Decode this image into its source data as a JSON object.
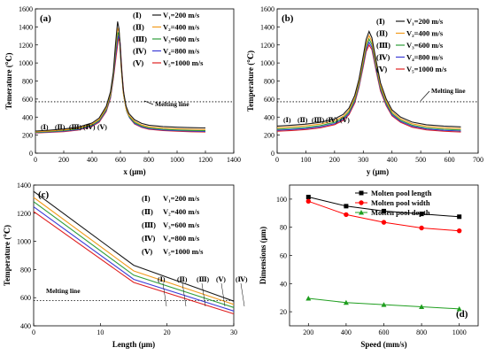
{
  "chart_data": [
    {
      "type": "line",
      "panel_label": "(a)",
      "xlabel": "x (μm)",
      "ylabel": "Temerature (℃)",
      "xlim": [
        0,
        1400
      ],
      "ylim": [
        0,
        1600
      ],
      "xticks": [
        0,
        200,
        400,
        600,
        800,
        1000,
        1200,
        1400
      ],
      "yticks": [
        0,
        200,
        400,
        600,
        800,
        1000,
        1200,
        1400,
        1600
      ],
      "annotation": "Melting line",
      "melting_line_value": 570,
      "curve_tags": [
        "(Ⅰ)",
        "(Ⅱ)",
        "(Ⅲ)",
        "(Ⅳ)",
        "(Ⅴ)"
      ],
      "series": [
        {
          "name": "V₁=200 m/s",
          "marker": "(Ⅰ)",
          "color": "#1a1a1a",
          "x": [
            0,
            100,
            200,
            300,
            400,
            450,
            500,
            530,
            550,
            565,
            580,
            590,
            605,
            620,
            640,
            660,
            700,
            750,
            800,
            900,
            1000,
            1100,
            1200
          ],
          "values": [
            245,
            255,
            268,
            288,
            335,
            390,
            520,
            680,
            900,
            1200,
            1460,
            1380,
            1000,
            700,
            520,
            440,
            370,
            330,
            310,
            295,
            288,
            283,
            280
          ]
        },
        {
          "name": "V₂=400 m/s",
          "marker": "(Ⅱ)",
          "color": "#f29a1c",
          "x": [
            0,
            100,
            200,
            300,
            400,
            450,
            500,
            530,
            550,
            565,
            580,
            592,
            605,
            620,
            640,
            660,
            700,
            750,
            800,
            900,
            1000,
            1100,
            1200
          ],
          "values": [
            238,
            246,
            258,
            276,
            322,
            375,
            500,
            660,
            880,
            1160,
            1390,
            1330,
            960,
            670,
            495,
            420,
            352,
            312,
            292,
            278,
            270,
            265,
            262
          ]
        },
        {
          "name": "V₃=600 m/s",
          "marker": "(Ⅲ)",
          "color": "#2e9e3a",
          "x": [
            0,
            100,
            200,
            300,
            400,
            450,
            500,
            530,
            550,
            565,
            582,
            594,
            607,
            622,
            642,
            662,
            700,
            750,
            800,
            900,
            1000,
            1100,
            1200
          ],
          "values": [
            232,
            240,
            250,
            268,
            312,
            362,
            485,
            640,
            860,
            1120,
            1340,
            1290,
            930,
            650,
            480,
            405,
            340,
            300,
            280,
            265,
            257,
            252,
            249
          ]
        },
        {
          "name": "V₄=800 m/s",
          "marker": "(Ⅳ)",
          "color": "#3b3bd6",
          "x": [
            0,
            100,
            200,
            300,
            400,
            450,
            500,
            530,
            550,
            567,
            584,
            596,
            609,
            624,
            644,
            664,
            700,
            750,
            800,
            900,
            1000,
            1100,
            1200
          ],
          "values": [
            228,
            235,
            244,
            261,
            303,
            352,
            472,
            625,
            840,
            1090,
            1300,
            1255,
            905,
            632,
            468,
            395,
            330,
            292,
            272,
            257,
            249,
            244,
            241
          ]
        },
        {
          "name": "V₅=1000 m/s",
          "marker": "(Ⅴ)",
          "color": "#e02020",
          "x": [
            0,
            100,
            200,
            300,
            400,
            450,
            500,
            530,
            550,
            569,
            586,
            598,
            611,
            626,
            646,
            666,
            700,
            750,
            800,
            900,
            1000,
            1100,
            1200
          ],
          "values": [
            224,
            231,
            239,
            255,
            296,
            344,
            462,
            612,
            825,
            1065,
            1270,
            1225,
            885,
            618,
            458,
            388,
            323,
            286,
            266,
            251,
            243,
            238,
            235
          ]
        }
      ]
    },
    {
      "type": "line",
      "panel_label": "(b)",
      "xlabel": "y (μm)",
      "ylabel": "Temperature (℃)",
      "xlim": [
        0,
        700
      ],
      "ylim": [
        0,
        1600
      ],
      "xticks": [
        0,
        100,
        200,
        300,
        400,
        500,
        600,
        700
      ],
      "yticks": [
        0,
        200,
        400,
        600,
        800,
        1000,
        1200,
        1400,
        1600
      ],
      "annotation": "Melting line",
      "melting_line_value": 570,
      "curve_tags": [
        "(Ⅰ)",
        "(Ⅱ)",
        "(Ⅲ)",
        "(Ⅳ)",
        "(Ⅴ)"
      ],
      "series": [
        {
          "name": "V₁=200 m/s",
          "marker": "(Ⅰ)",
          "color": "#1a1a1a",
          "x": [
            0,
            50,
            100,
            150,
            200,
            230,
            250,
            270,
            285,
            300,
            310,
            320,
            330,
            345,
            360,
            380,
            400,
            430,
            470,
            520,
            580,
            640
          ],
          "values": [
            300,
            310,
            322,
            342,
            380,
            430,
            500,
            640,
            820,
            1080,
            1260,
            1350,
            1280,
            1020,
            780,
            600,
            480,
            400,
            345,
            315,
            300,
            292
          ]
        },
        {
          "name": "V₂=400 m/s",
          "marker": "(Ⅱ)",
          "color": "#f29a1c",
          "x": [
            0,
            50,
            100,
            150,
            200,
            230,
            250,
            270,
            285,
            300,
            310,
            320,
            330,
            345,
            360,
            380,
            400,
            430,
            470,
            520,
            580,
            640
          ],
          "values": [
            282,
            292,
            303,
            322,
            360,
            408,
            475,
            612,
            790,
            1040,
            1215,
            1305,
            1240,
            985,
            750,
            575,
            458,
            380,
            326,
            296,
            281,
            273
          ]
        },
        {
          "name": "V₃=600 m/s",
          "marker": "(Ⅲ)",
          "color": "#2e9e3a",
          "x": [
            0,
            50,
            100,
            150,
            200,
            230,
            250,
            270,
            285,
            300,
            310,
            320,
            330,
            345,
            360,
            380,
            400,
            430,
            470,
            520,
            580,
            640
          ],
          "values": [
            266,
            275,
            286,
            305,
            342,
            390,
            455,
            590,
            765,
            1010,
            1180,
            1265,
            1205,
            955,
            728,
            556,
            440,
            364,
            310,
            280,
            265,
            257
          ]
        },
        {
          "name": "V₄=800 m/s",
          "marker": "(Ⅳ)",
          "color": "#3b3bd6",
          "x": [
            0,
            50,
            100,
            150,
            200,
            230,
            250,
            270,
            285,
            300,
            310,
            320,
            330,
            345,
            360,
            380,
            400,
            430,
            470,
            520,
            580,
            640
          ],
          "values": [
            254,
            262,
            273,
            292,
            328,
            375,
            440,
            572,
            745,
            985,
            1150,
            1230,
            1175,
            930,
            708,
            540,
            426,
            352,
            298,
            268,
            253,
            245
          ]
        },
        {
          "name": "V₅=1000 m/s",
          "marker": "(Ⅴ)",
          "color": "#e02020",
          "x": [
            0,
            50,
            100,
            150,
            200,
            230,
            250,
            270,
            285,
            300,
            310,
            320,
            330,
            345,
            360,
            380,
            400,
            430,
            470,
            520,
            580,
            640
          ],
          "values": [
            243,
            251,
            262,
            280,
            316,
            362,
            426,
            556,
            728,
            962,
            1125,
            1200,
            1148,
            908,
            690,
            526,
            414,
            342,
            288,
            258,
            243,
            235
          ]
        }
      ]
    },
    {
      "type": "line",
      "panel_label": "(c)",
      "xlabel": "Length (μm)",
      "ylabel": "Temperature (℃)",
      "xlim": [
        0,
        30
      ],
      "ylim": [
        400,
        1400
      ],
      "xticks": [
        0,
        10,
        20,
        30
      ],
      "yticks": [
        400,
        600,
        800,
        1000,
        1200,
        1400
      ],
      "annotation": "Melting line",
      "melting_line_value": 580,
      "curve_tags": [
        "(Ⅰ)",
        "(Ⅱ)",
        "(Ⅲ)",
        "(Ⅴ)",
        "(Ⅳ)"
      ],
      "series": [
        {
          "name": "V₁=200 m/s",
          "marker": "(Ⅰ)",
          "color": "#1a1a1a",
          "x": [
            0,
            15,
            30
          ],
          "values": [
            1355,
            830,
            575
          ]
        },
        {
          "name": "V₂=400 m/s",
          "marker": "(Ⅱ)",
          "color": "#f29a1c",
          "x": [
            0,
            15,
            30
          ],
          "values": [
            1312,
            790,
            552
          ]
        },
        {
          "name": "V₃=600 m/s",
          "marker": "(Ⅲ)",
          "color": "#2e9e3a",
          "x": [
            0,
            15,
            30
          ],
          "values": [
            1282,
            760,
            530
          ]
        },
        {
          "name": "V₄=800 m/s",
          "marker": "(Ⅳ)",
          "color": "#3b3bd6",
          "x": [
            0,
            15,
            30
          ],
          "values": [
            1245,
            730,
            505
          ]
        },
        {
          "name": "V₅=1000 m/s",
          "marker": "(Ⅴ)",
          "color": "#e02020",
          "x": [
            0,
            15,
            30
          ],
          "values": [
            1212,
            708,
            485
          ]
        }
      ]
    },
    {
      "type": "line",
      "panel_label": "(d)",
      "xlabel": "Speed (mm/s)",
      "ylabel": "Dimensions (μm)",
      "xlim": [
        100,
        1100
      ],
      "ylim": [
        10,
        110
      ],
      "xticks": [
        200,
        400,
        600,
        800,
        1000
      ],
      "yticks": [
        20,
        40,
        60,
        80,
        100
      ],
      "categories": [
        200,
        400,
        600,
        800,
        1000
      ],
      "series": [
        {
          "name": "Molten pool length",
          "color": "#000000",
          "marker_shape": "square",
          "values": [
            101.5,
            95,
            91.5,
            89.5,
            87.5
          ]
        },
        {
          "name": "Molten pool width",
          "color": "#ff0000",
          "marker_shape": "circle",
          "values": [
            98.5,
            89,
            83.5,
            79.5,
            77.5
          ]
        },
        {
          "name": "Molten pool depth",
          "color": "#1f9e1f",
          "marker_shape": "triangle",
          "values": [
            29.5,
            26.5,
            25,
            23.5,
            22
          ]
        }
      ]
    }
  ]
}
